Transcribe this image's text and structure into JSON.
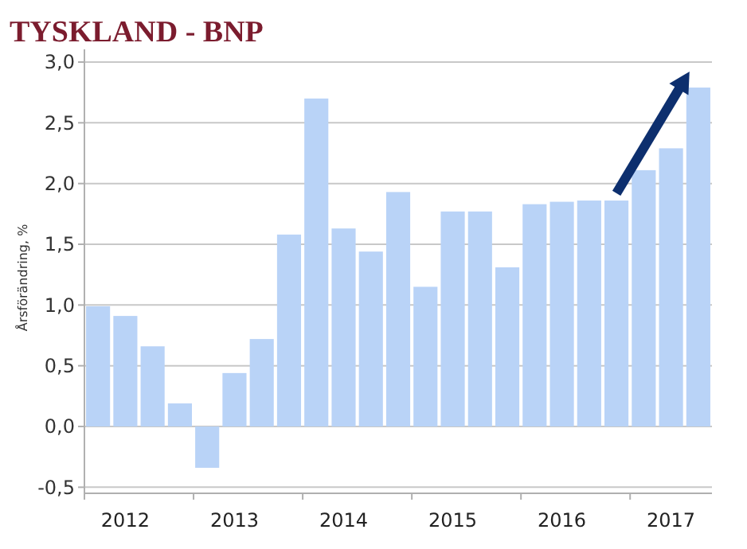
{
  "chart_data": {
    "type": "bar",
    "title": "TYSKLAND - BNP",
    "ylabel": "Årsförändring, %",
    "categories": [
      null,
      "2012",
      null,
      null,
      null,
      "2013",
      null,
      null,
      null,
      "2014",
      null,
      null,
      null,
      "2015",
      null,
      null,
      null,
      "2016",
      null,
      null,
      null,
      "2017",
      null
    ],
    "values": [
      0.99,
      0.91,
      0.66,
      0.19,
      -0.34,
      0.44,
      0.72,
      1.58,
      2.7,
      1.63,
      1.44,
      1.93,
      1.15,
      1.77,
      1.77,
      1.31,
      1.83,
      1.85,
      1.86,
      1.86,
      2.11,
      2.29,
      2.79
    ],
    "color": "#b9d3f7",
    "ylim": [
      -0.55,
      3.0
    ],
    "yticks": [
      {
        "value": -0.5,
        "label": "-0,5"
      },
      {
        "value": 0,
        "label": "0,0"
      },
      {
        "value": 0.5,
        "label": "0,5"
      },
      {
        "value": 1,
        "label": "1,0"
      },
      {
        "value": 1.5,
        "label": "1,5"
      },
      {
        "value": 2,
        "label": "2,0"
      },
      {
        "value": 2.5,
        "label": "2,5"
      },
      {
        "value": 3,
        "label": "3,0"
      }
    ],
    "grid": "y"
  }
}
